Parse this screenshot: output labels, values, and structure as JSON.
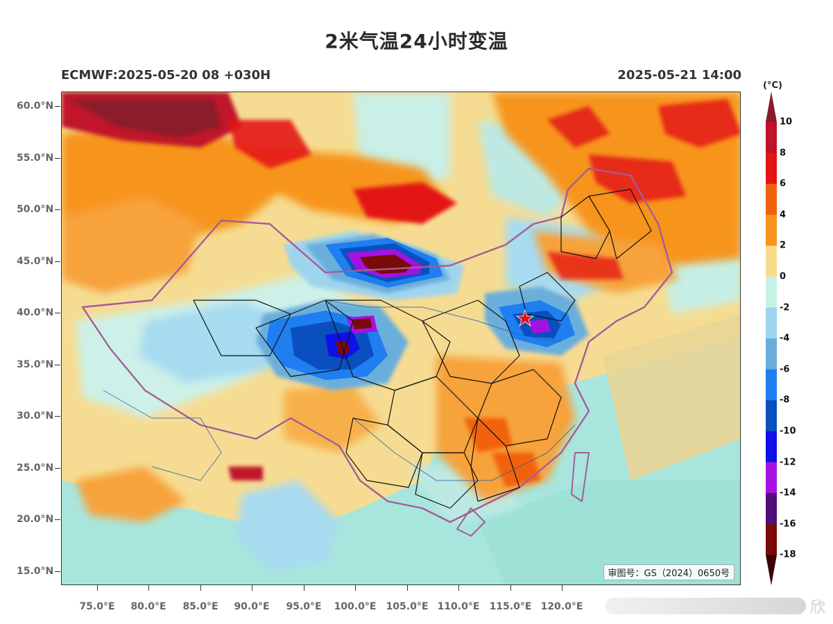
{
  "title": "2米气温24小时变温",
  "subtitle_left": "ECMWF:2025-05-20 08 +030H",
  "subtitle_right": "2025-05-21 14:00",
  "review_number": "审图号：GS（2024）0650号",
  "watermark": "欣",
  "lat_labels": [
    "60.0°N",
    "55.0°N",
    "50.0°N",
    "45.0°N",
    "40.0°N",
    "35.0°N",
    "30.0°N",
    "25.0°N",
    "20.0°N",
    "15.0°N"
  ],
  "lon_labels": [
    "75.0°E",
    "80.0°E",
    "85.0°E",
    "90.0°E",
    "95.0°E",
    "100.0°E",
    "105.0°E",
    "110.0°E",
    "115.0°E",
    "120.0°E"
  ],
  "colorbar": {
    "unit": "(°C)",
    "labels": [
      "10",
      "8",
      "6",
      "4",
      "2",
      "0",
      "-2",
      "-4",
      "-6",
      "-8",
      "-10",
      "-12",
      "-14",
      "-16",
      "-18"
    ],
    "colors": [
      "#8b1a2b",
      "#c0122a",
      "#e31414",
      "#f2620e",
      "#f7941d",
      "#f9dc8a",
      "#c5f3e6",
      "#9fd4ef",
      "#6aaedc",
      "#1f7ef0",
      "#0a4fbf",
      "#1010e8",
      "#a512e0",
      "#4f0f7a",
      "#7a0a0a",
      "#3b0404"
    ]
  },
  "map": {
    "capital_marker": "star",
    "features": [
      "temperature-change-field",
      "china-border",
      "province-borders",
      "rivers",
      "coastline"
    ]
  }
}
